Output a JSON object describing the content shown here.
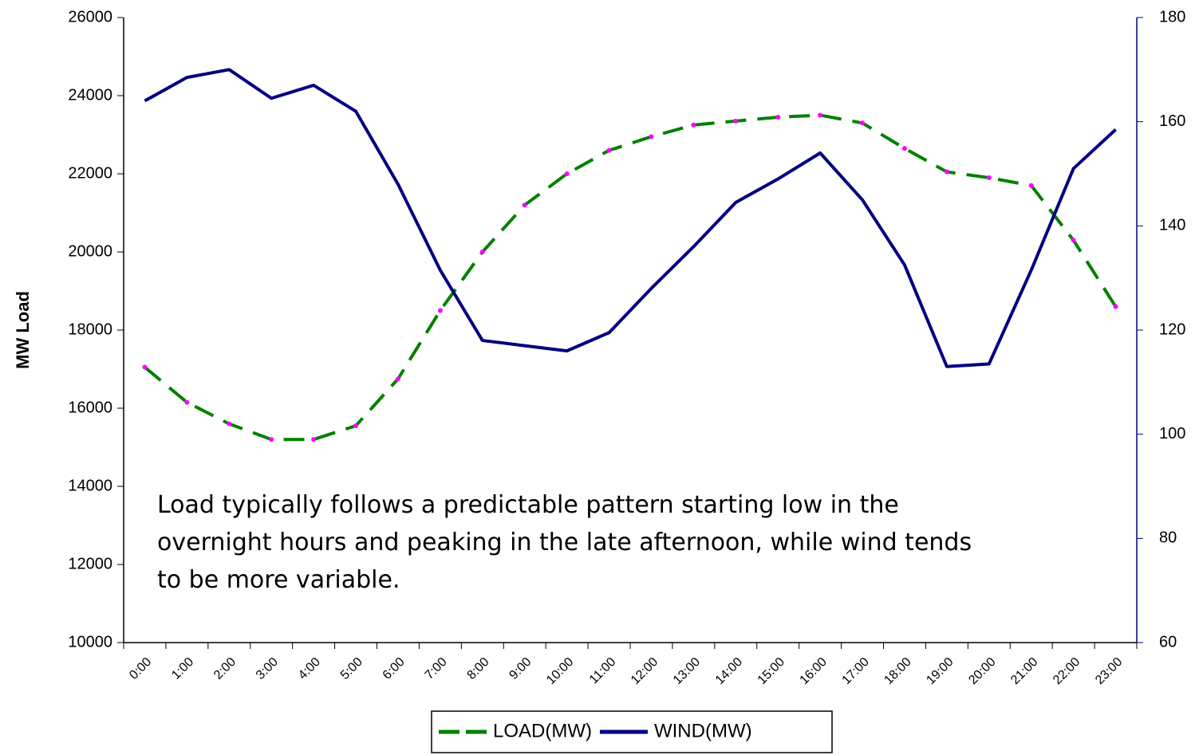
{
  "chart_data": {
    "type": "line",
    "y_label": "MW Load",
    "annotation": [
      "Load typically follows a predictable pattern starting low in the",
      "overnight hours and peaking in the late afternoon, while wind tends",
      "to be more variable."
    ],
    "categories": [
      "0:00",
      "1:00",
      "2:00",
      "3:00",
      "4:00",
      "5:00",
      "6:00",
      "7:00",
      "8:00",
      "9:00",
      "10:00",
      "11:00",
      "12:00",
      "13:00",
      "14:00",
      "15:00",
      "16:00",
      "17:00",
      "18:00",
      "19:00",
      "20:00",
      "21:00",
      "22:00",
      "23:00"
    ],
    "series": [
      {
        "name": "LOAD(MW)",
        "color": "#008000",
        "marker_color": "#ff00ff",
        "dashed": true,
        "values": [
          17050,
          16150,
          15600,
          15200,
          15200,
          15550,
          16750,
          18500,
          20000,
          21200,
          22000,
          22600,
          22950,
          23250,
          23350,
          23450,
          23500,
          23300,
          22650,
          22050,
          21900,
          21700,
          20300,
          18600
        ]
      },
      {
        "name": "WIND(MW)",
        "color": "#000080",
        "axis": "y2",
        "values": [
          164,
          168.5,
          170,
          164.5,
          167,
          162,
          148,
          131.5,
          118,
          117,
          116,
          119.5,
          128,
          136,
          144.5,
          149,
          154,
          145,
          132.5,
          113,
          113.5,
          131.5,
          151,
          158.5
        ]
      }
    ],
    "ylim": [
      10000,
      26000
    ],
    "yticks": [
      10000,
      12000,
      14000,
      16000,
      18000,
      20000,
      22000,
      24000,
      26000
    ],
    "y2lim": [
      60,
      180
    ],
    "y2ticks": [
      60,
      80,
      100,
      120,
      140,
      160,
      180
    ],
    "legend": "bottom"
  }
}
